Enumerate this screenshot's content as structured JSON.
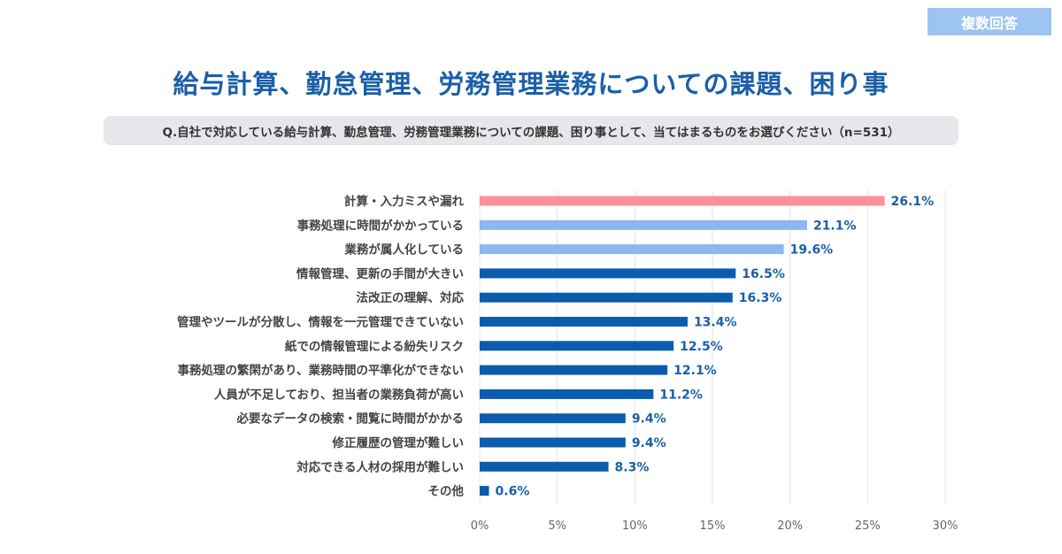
{
  "badge": "複数回答",
  "title": "給与計算、勤怠管理、労務管理業務についての課題、困り事",
  "question": "Q.自社で対応している給与計算、勤怠管理、労務管理業務についての課題、困り事として、当てはまるものをお選びください（n=531）",
  "colors": {
    "highlight": "#fd8f99",
    "secondary": "#8ab8ef",
    "primary": "#0b5cad",
    "value_text": "#1a5fa8"
  },
  "chart_data": {
    "type": "bar",
    "orientation": "horizontal",
    "categories": [
      "計算・入力ミスや漏れ",
      "事務処理に時間がかかっている",
      "業務が属人化している",
      "情報管理、更新の手間が大きい",
      "法改正の理解、対応",
      "管理やツールが分散し、情報を一元管理できていない",
      "紙での情報管理による紛失リスク",
      "事務処理の繁閑があり、業務時間の平準化ができない",
      "人員が不足しており、担当者の業務負荷が高い",
      "必要なデータの検索・閲覧に時間がかかる",
      "修正履歴の管理が難しい",
      "対応できる人材の採用が難しい",
      "その他"
    ],
    "values": [
      26.1,
      21.1,
      19.6,
      16.5,
      16.3,
      13.4,
      12.5,
      12.1,
      11.2,
      9.4,
      9.4,
      8.3,
      0.6
    ],
    "value_labels": [
      "26.1%",
      "21.1%",
      "19.6%",
      "16.5%",
      "16.3%",
      "13.4%",
      "12.5%",
      "12.1%",
      "11.2%",
      "9.4%",
      "9.4%",
      "8.3%",
      "0.6%"
    ],
    "bar_color_keys": [
      "highlight",
      "secondary",
      "secondary",
      "primary",
      "primary",
      "primary",
      "primary",
      "primary",
      "primary",
      "primary",
      "primary",
      "primary",
      "primary"
    ],
    "xlim": [
      0,
      30
    ],
    "xticks": [
      0,
      5,
      10,
      15,
      20,
      25,
      30
    ],
    "xtick_labels": [
      "0%",
      "5%",
      "10%",
      "15%",
      "20%",
      "25%",
      "30%"
    ],
    "grid": true
  }
}
